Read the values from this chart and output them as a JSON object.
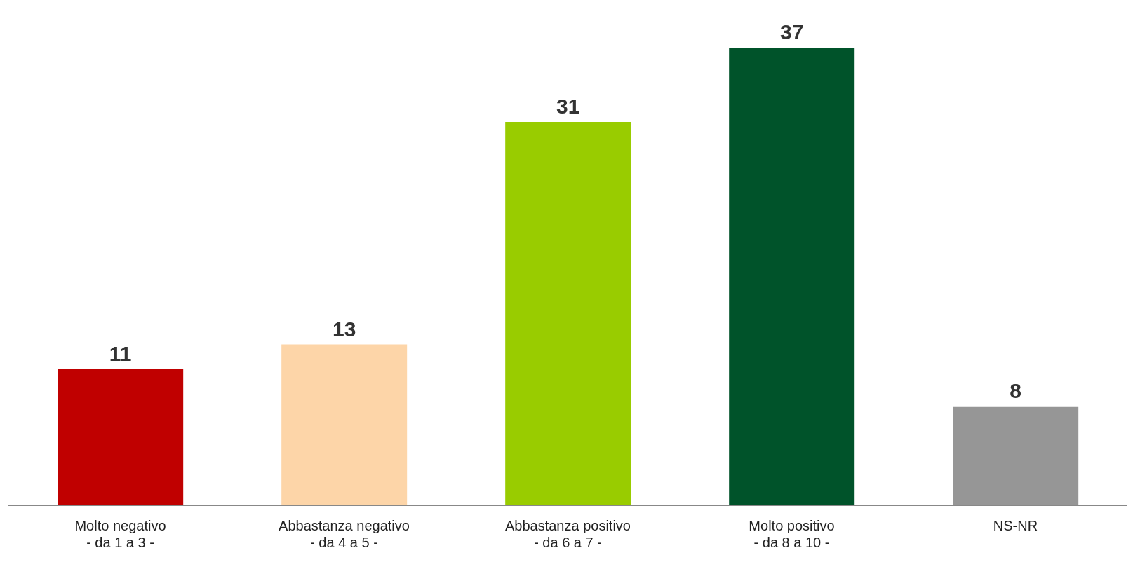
{
  "chart_data": {
    "type": "bar",
    "categories": [
      "Molto negativo\n- da 1 a 3 -",
      "Abbastanza negativo\n- da 4 a 5 -",
      "Abbastanza positivo\n- da 6 a 7 -",
      "Molto positivo\n- da 8 a 10 -",
      "NS-NR"
    ],
    "values": [
      11,
      13,
      31,
      37,
      8
    ],
    "colors": [
      "#c00000",
      "#fdd5a8",
      "#99cc00",
      "#00532a",
      "#969696"
    ],
    "data_labels": true,
    "grid": false,
    "legend": false
  }
}
